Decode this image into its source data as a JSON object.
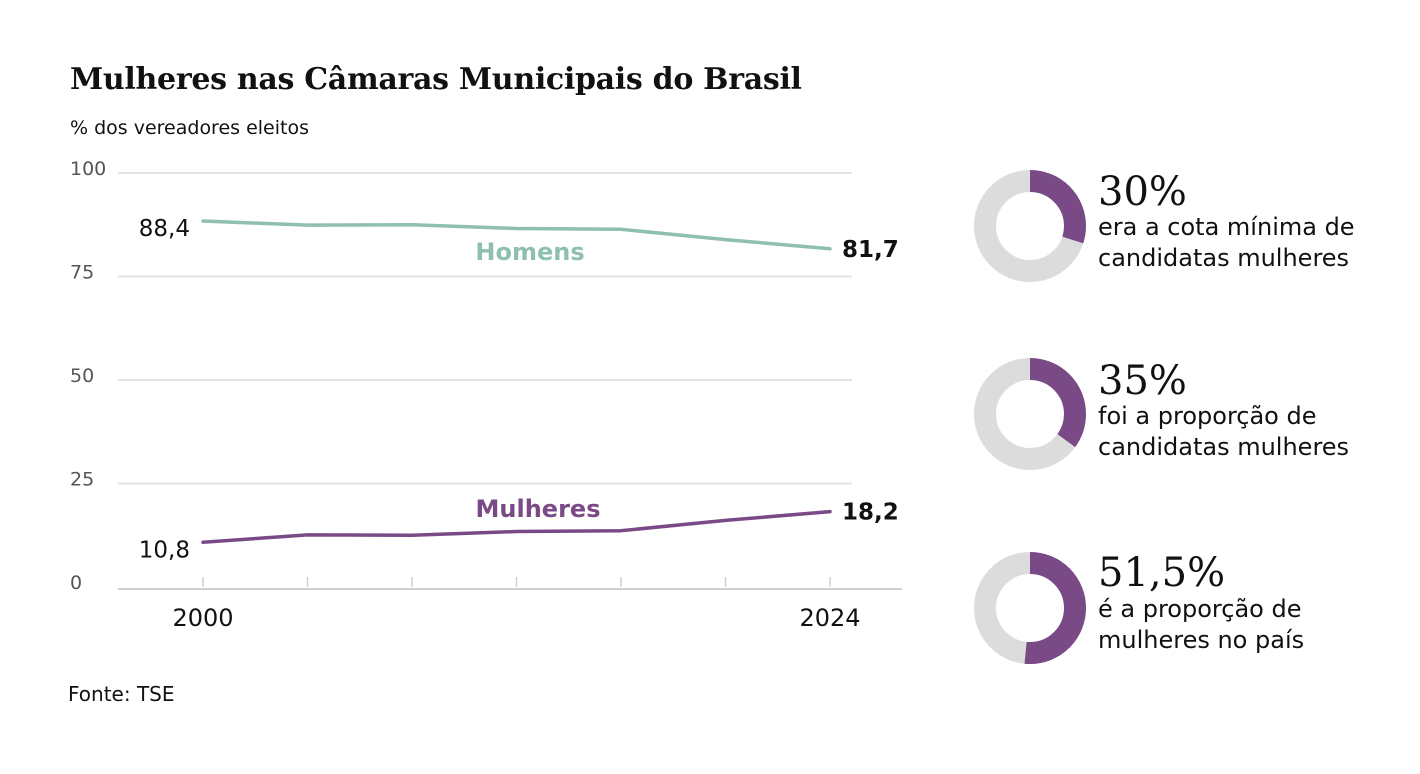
{
  "title": "Mulheres nas Câmaras Municipais do Brasil",
  "subtitle": "% dos vereadores eleitos",
  "source": "Fonte: TSE",
  "colors": {
    "homens": "#8fbfae",
    "mulheres": "#7a4a87",
    "grid": "#e3e3e3",
    "ring_bg": "#dcdcdc",
    "ring_fg": "#7a4a87"
  },
  "chart_data": {
    "type": "line",
    "x": [
      2000,
      2004,
      2008,
      2012,
      2016,
      2020,
      2024
    ],
    "x_tick_labels": [
      "2000",
      "2024"
    ],
    "y_ticks": [
      0,
      25,
      50,
      75,
      100
    ],
    "ylim": [
      0,
      100
    ],
    "grid": true,
    "series": [
      {
        "name": "Homens",
        "values": [
          88.4,
          87.4,
          87.5,
          86.6,
          86.4,
          83.9,
          81.7
        ],
        "start_label": "88,4",
        "end_label": "81,7"
      },
      {
        "name": "Mulheres",
        "values": [
          10.8,
          12.6,
          12.5,
          13.4,
          13.6,
          16.1,
          18.2
        ],
        "start_label": "10,8",
        "end_label": "18,2"
      }
    ]
  },
  "stats": [
    {
      "value": 30,
      "label": "30%",
      "text_lines": [
        "era a cota mínima de",
        "candidatas mulheres"
      ]
    },
    {
      "value": 35,
      "label": "35%",
      "text_lines": [
        "foi a proporção de",
        "candidatas mulheres"
      ]
    },
    {
      "value": 51.5,
      "label": "51,5%",
      "text_lines": [
        "é a proporção de",
        "mulheres no país"
      ]
    }
  ]
}
